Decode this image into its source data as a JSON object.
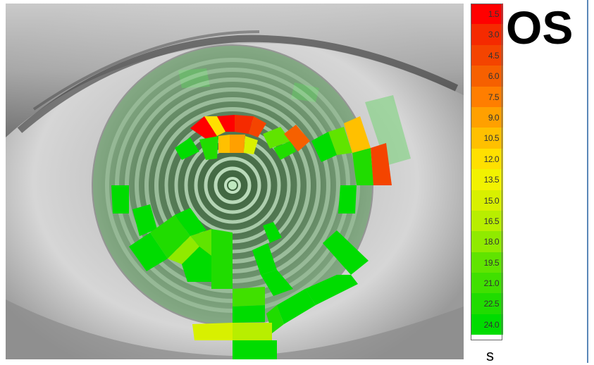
{
  "eye_label": "OS",
  "unit_label": "s",
  "scale": {
    "labels": [
      "1.5",
      "3.0",
      "4.5",
      "6.0",
      "7.5",
      "9.0",
      "10.5",
      "12.0",
      "13.5",
      "15.0",
      "16.5",
      "18.0",
      "19.5",
      "21.0",
      "22.5",
      "24.0"
    ],
    "colors": [
      "#ff0000",
      "#f52a00",
      "#f44400",
      "#f66000",
      "#ff7e00",
      "#ffa000",
      "#ffc000",
      "#ffe000",
      "#f2f200",
      "#d8f000",
      "#b8ee00",
      "#90ea00",
      "#60e400",
      "#40e000",
      "#20dc00",
      "#00dc00"
    ]
  }
}
